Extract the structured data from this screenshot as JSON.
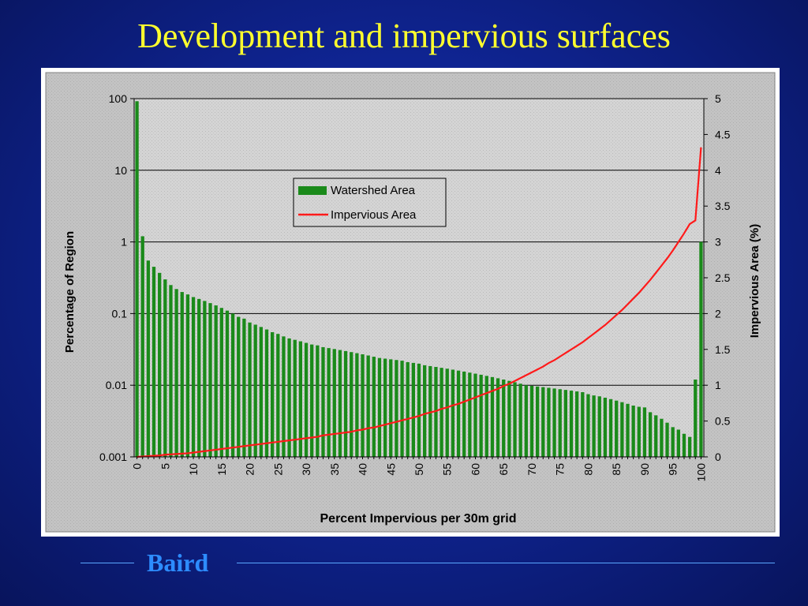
{
  "slide": {
    "title": "Development and impervious surfaces",
    "footer": "Baird"
  },
  "colors": {
    "background": "#0f2492",
    "title": "#ffff2e",
    "footer_text": "#2d8cff",
    "footer_line": "#5aa8ff",
    "bar": "#1a8a1a",
    "line": "#ff1a1a",
    "plot_bg": "#d3d3d3",
    "frame_bg": "#c0c0c0"
  },
  "chart_data": {
    "type": "bar",
    "title": "",
    "xlabel": "Percent Impervious per 30m grid",
    "ylabel": "Percentage of Region",
    "y2label": "Impervious Area (%)",
    "x": [
      0,
      1,
      2,
      3,
      4,
      5,
      6,
      7,
      8,
      9,
      10,
      11,
      12,
      13,
      14,
      15,
      16,
      17,
      18,
      19,
      20,
      21,
      22,
      23,
      24,
      25,
      26,
      27,
      28,
      29,
      30,
      31,
      32,
      33,
      34,
      35,
      36,
      37,
      38,
      39,
      40,
      41,
      42,
      43,
      44,
      45,
      46,
      47,
      48,
      49,
      50,
      51,
      52,
      53,
      54,
      55,
      56,
      57,
      58,
      59,
      60,
      61,
      62,
      63,
      64,
      65,
      66,
      67,
      68,
      69,
      70,
      71,
      72,
      73,
      74,
      75,
      76,
      77,
      78,
      79,
      80,
      81,
      82,
      83,
      84,
      85,
      86,
      87,
      88,
      89,
      90,
      91,
      92,
      93,
      94,
      95,
      96,
      97,
      98,
      99,
      100
    ],
    "x_ticks": [
      "0",
      "5",
      "10",
      "15",
      "20",
      "25",
      "30",
      "35",
      "40",
      "45",
      "50",
      "55",
      "60",
      "65",
      "70",
      "75",
      "80",
      "85",
      "90",
      "95",
      "100"
    ],
    "y_ticks": [
      "0.001",
      "0.01",
      "0.1",
      "1",
      "10",
      "100"
    ],
    "y2_ticks": [
      "0",
      "0.5",
      "1",
      "1.5",
      "2",
      "2.5",
      "3",
      "3.5",
      "4",
      "4.5",
      "5"
    ],
    "ylim": [
      0.001,
      100
    ],
    "yscale": "log",
    "y2lim": [
      0,
      5
    ],
    "grid": true,
    "legend": "upper-center",
    "series": [
      {
        "name": "Watershed Area",
        "type": "bar",
        "axis": "left",
        "values": [
          92,
          1.2,
          0.55,
          0.45,
          0.37,
          0.3,
          0.25,
          0.22,
          0.2,
          0.185,
          0.17,
          0.16,
          0.15,
          0.14,
          0.13,
          0.12,
          0.11,
          0.1,
          0.09,
          0.085,
          0.075,
          0.07,
          0.065,
          0.06,
          0.055,
          0.052,
          0.048,
          0.045,
          0.043,
          0.041,
          0.039,
          0.037,
          0.036,
          0.034,
          0.033,
          0.032,
          0.031,
          0.03,
          0.029,
          0.028,
          0.027,
          0.026,
          0.025,
          0.024,
          0.0235,
          0.023,
          0.0225,
          0.022,
          0.021,
          0.0205,
          0.02,
          0.019,
          0.0185,
          0.018,
          0.0175,
          0.017,
          0.0165,
          0.016,
          0.0155,
          0.015,
          0.0145,
          0.014,
          0.0135,
          0.013,
          0.0125,
          0.012,
          0.0115,
          0.011,
          0.0105,
          0.01,
          0.0098,
          0.0096,
          0.0094,
          0.0092,
          0.009,
          0.0088,
          0.0086,
          0.0084,
          0.0082,
          0.008,
          0.0075,
          0.0072,
          0.007,
          0.0067,
          0.0064,
          0.0061,
          0.0058,
          0.0055,
          0.0052,
          0.005,
          0.0049,
          0.0042,
          0.0038,
          0.0034,
          0.003,
          0.0026,
          0.0024,
          0.0021,
          0.0019,
          0.012,
          1.0
        ]
      },
      {
        "name": "Impervious Area",
        "type": "line",
        "axis": "right",
        "values": [
          0,
          0.005,
          0.01,
          0.015,
          0.02,
          0.03,
          0.035,
          0.04,
          0.045,
          0.05,
          0.06,
          0.07,
          0.08,
          0.09,
          0.1,
          0.11,
          0.12,
          0.13,
          0.14,
          0.15,
          0.16,
          0.17,
          0.18,
          0.19,
          0.2,
          0.21,
          0.22,
          0.23,
          0.24,
          0.25,
          0.26,
          0.27,
          0.28,
          0.3,
          0.31,
          0.32,
          0.33,
          0.34,
          0.35,
          0.37,
          0.38,
          0.4,
          0.41,
          0.43,
          0.45,
          0.47,
          0.49,
          0.51,
          0.53,
          0.55,
          0.57,
          0.6,
          0.62,
          0.64,
          0.67,
          0.69,
          0.72,
          0.74,
          0.77,
          0.8,
          0.83,
          0.86,
          0.89,
          0.92,
          0.95,
          0.99,
          1.02,
          1.06,
          1.1,
          1.14,
          1.18,
          1.22,
          1.26,
          1.31,
          1.35,
          1.4,
          1.45,
          1.5,
          1.55,
          1.6,
          1.66,
          1.72,
          1.78,
          1.84,
          1.91,
          1.98,
          2.05,
          2.13,
          2.21,
          2.29,
          2.38,
          2.47,
          2.57,
          2.67,
          2.77,
          2.88,
          3.0,
          3.12,
          3.25,
          3.3,
          4.32
        ]
      }
    ]
  }
}
